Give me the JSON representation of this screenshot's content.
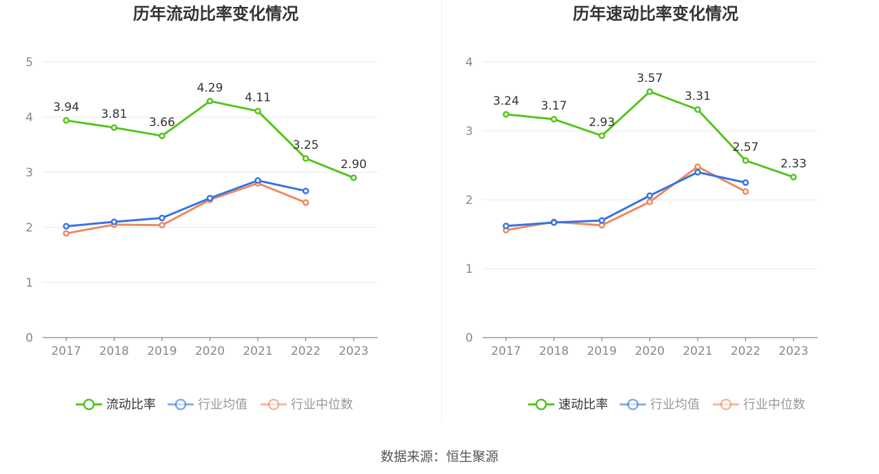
{
  "colors": {
    "main": "#52c41a",
    "avg": "#3573e0",
    "median": "#f0875e",
    "grid": "#e5e7ef",
    "axis": "#666666"
  },
  "source_text": "数据来源：恒生聚源",
  "legend": {
    "main_left": "流动比率",
    "main_right": "速动比率",
    "avg": "行业均值",
    "median": "行业中位数"
  },
  "chart_data": [
    {
      "type": "line",
      "title": "历年流动比率变化情况",
      "xlabel": "",
      "ylabel": "",
      "categories": [
        "2017",
        "2018",
        "2019",
        "2020",
        "2021",
        "2022",
        "2023"
      ],
      "ylim": [
        0,
        5
      ],
      "yticks": [
        "0",
        "1",
        "2",
        "3",
        "4",
        "5"
      ],
      "grid": true,
      "legend_position": "bottom",
      "series": [
        {
          "name": "流动比率",
          "values": [
            3.94,
            3.81,
            3.66,
            4.29,
            4.11,
            3.25,
            2.9
          ],
          "labels": [
            "3.94",
            "3.81",
            "3.66",
            "4.29",
            "4.11",
            "3.25",
            "2.90"
          ]
        },
        {
          "name": "行业均值",
          "values": [
            2.02,
            2.1,
            2.17,
            2.53,
            2.85,
            2.66,
            null
          ]
        },
        {
          "name": "行业中位数",
          "values": [
            1.89,
            2.05,
            2.04,
            2.5,
            2.8,
            2.45,
            null
          ]
        }
      ]
    },
    {
      "type": "line",
      "title": "历年速动比率变化情况",
      "xlabel": "",
      "ylabel": "",
      "categories": [
        "2017",
        "2018",
        "2019",
        "2020",
        "2021",
        "2022",
        "2023"
      ],
      "ylim": [
        0,
        4
      ],
      "yticks": [
        "0",
        "1",
        "2",
        "3",
        "4"
      ],
      "grid": true,
      "legend_position": "bottom",
      "series": [
        {
          "name": "速动比率",
          "values": [
            3.24,
            3.17,
            2.93,
            3.57,
            3.31,
            2.57,
            2.33
          ],
          "labels": [
            "3.24",
            "3.17",
            "2.93",
            "3.57",
            "3.31",
            "2.57",
            "2.33"
          ]
        },
        {
          "name": "行业均值",
          "values": [
            1.62,
            1.67,
            1.7,
            2.06,
            2.4,
            2.25,
            null
          ]
        },
        {
          "name": "行业中位数",
          "values": [
            1.56,
            1.68,
            1.63,
            1.97,
            2.48,
            2.12,
            null
          ]
        }
      ]
    }
  ]
}
